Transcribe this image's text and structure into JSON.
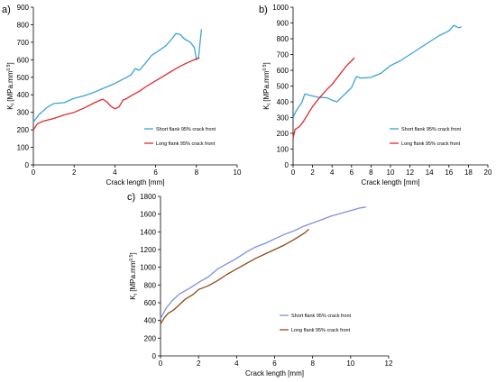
{
  "chart_data": [
    {
      "type": "line",
      "panel_label": "a)",
      "xlabel": "Crack length  [mm]",
      "ylabel": "K",
      "ylabel_sub": "I",
      "ylabel_unit": " [MPa.mm",
      "ylabel_exp": "0.5",
      "ylabel_close": "]",
      "xlim": [
        0,
        10
      ],
      "ylim": [
        0,
        900
      ],
      "xticks": [
        0,
        2,
        4,
        6,
        8,
        10
      ],
      "yticks": [
        0,
        100,
        200,
        300,
        400,
        500,
        600,
        700,
        800,
        900
      ],
      "grid": false,
      "legend_position": "right-center",
      "series": [
        {
          "name": "Short flank 95% crack front",
          "color": "#3AA4D4",
          "points": [
            [
              0,
              245
            ],
            [
              0.3,
              290
            ],
            [
              0.7,
              330
            ],
            [
              1,
              350
            ],
            [
              1.5,
              355
            ],
            [
              2,
              380
            ],
            [
              2.5,
              395
            ],
            [
              3,
              415
            ],
            [
              3.5,
              440
            ],
            [
              4,
              465
            ],
            [
              4.5,
              495
            ],
            [
              4.8,
              515
            ],
            [
              5,
              550
            ],
            [
              5.2,
              540
            ],
            [
              5.5,
              580
            ],
            [
              5.8,
              625
            ],
            [
              6,
              640
            ],
            [
              6.5,
              680
            ],
            [
              6.8,
              720
            ],
            [
              7,
              750
            ],
            [
              7.2,
              745
            ],
            [
              7.4,
              720
            ],
            [
              7.7,
              700
            ],
            [
              7.9,
              670
            ],
            [
              8,
              600
            ],
            [
              8.1,
              610
            ],
            [
              8.25,
              775
            ]
          ]
        },
        {
          "name": "Long flank 95% crack front",
          "color": "#E02A2A",
          "points": [
            [
              0,
              200
            ],
            [
              0.2,
              235
            ],
            [
              0.5,
              250
            ],
            [
              1,
              265
            ],
            [
              1.5,
              285
            ],
            [
              2,
              300
            ],
            [
              2.5,
              325
            ],
            [
              3,
              355
            ],
            [
              3.4,
              375
            ],
            [
              3.6,
              360
            ],
            [
              3.8,
              335
            ],
            [
              4,
              320
            ],
            [
              4.2,
              330
            ],
            [
              4.4,
              370
            ],
            [
              4.6,
              380
            ],
            [
              4.8,
              395
            ],
            [
              5.2,
              420
            ],
            [
              5.5,
              445
            ],
            [
              6,
              480
            ],
            [
              6.5,
              515
            ],
            [
              7,
              550
            ],
            [
              7.5,
              580
            ],
            [
              8,
              605
            ],
            [
              8.15,
              612
            ]
          ]
        }
      ]
    },
    {
      "type": "line",
      "panel_label": "b)",
      "xlabel": "Crack length  [mm]",
      "ylabel": "K",
      "ylabel_sub": "I",
      "ylabel_unit": " [MPa.mm",
      "ylabel_exp": "0.5",
      "ylabel_close": "]",
      "xlim": [
        0,
        20
      ],
      "ylim": [
        0,
        1000
      ],
      "xticks": [
        0,
        2,
        4,
        6,
        8,
        10,
        12,
        14,
        16,
        18,
        20
      ],
      "yticks": [
        0,
        100,
        200,
        300,
        400,
        500,
        600,
        700,
        800,
        900,
        1000
      ],
      "grid": false,
      "legend_position": "right-center",
      "series": [
        {
          "name": "Short flank 95% crack front",
          "color": "#3AA4D4",
          "points": [
            [
              0,
              300
            ],
            [
              0.3,
              340
            ],
            [
              0.6,
              370
            ],
            [
              0.9,
              395
            ],
            [
              1.2,
              450
            ],
            [
              1.8,
              440
            ],
            [
              2.5,
              430
            ],
            [
              3.5,
              425
            ],
            [
              4,
              410
            ],
            [
              4.5,
              400
            ],
            [
              5,
              430
            ],
            [
              5.5,
              460
            ],
            [
              6,
              490
            ],
            [
              6.5,
              560
            ],
            [
              7,
              550
            ],
            [
              8,
              555
            ],
            [
              9,
              580
            ],
            [
              10,
              630
            ],
            [
              11,
              660
            ],
            [
              12,
              700
            ],
            [
              13,
              740
            ],
            [
              14,
              780
            ],
            [
              15,
              820
            ],
            [
              16,
              850
            ],
            [
              16.5,
              885
            ],
            [
              17,
              870
            ],
            [
              17.3,
              875
            ]
          ]
        },
        {
          "name": "Long flank 95% crack front",
          "color": "#E02A2A",
          "points": [
            [
              0,
              170
            ],
            [
              0.2,
              225
            ],
            [
              0.6,
              240
            ],
            [
              1,
              270
            ],
            [
              1.5,
              320
            ],
            [
              2,
              370
            ],
            [
              2.5,
              410
            ],
            [
              3,
              445
            ],
            [
              3.5,
              480
            ],
            [
              4,
              510
            ],
            [
              4.5,
              550
            ],
            [
              5,
              590
            ],
            [
              5.5,
              630
            ],
            [
              6,
              660
            ],
            [
              6.3,
              680
            ]
          ]
        }
      ]
    },
    {
      "type": "line",
      "panel_label": "c)",
      "xlabel": "Crack length  [mm]",
      "ylabel": "K",
      "ylabel_sub": "I",
      "ylabel_unit": " [MPa.mm",
      "ylabel_exp": "0.5",
      "ylabel_close": "]",
      "xlim": [
        0,
        12
      ],
      "ylim": [
        0,
        1800
      ],
      "xticks": [
        0,
        2,
        4,
        6,
        8,
        10,
        12
      ],
      "yticks": [
        0,
        200,
        400,
        600,
        800,
        1000,
        1200,
        1400,
        1600,
        1800
      ],
      "grid": false,
      "legend_position": "right-center",
      "series": [
        {
          "name": "Short flank 95% crack front",
          "color": "#7F8FE0",
          "points": [
            [
              0,
              420
            ],
            [
              0.3,
              540
            ],
            [
              0.6,
              620
            ],
            [
              1,
              700
            ],
            [
              1.5,
              760
            ],
            [
              2,
              830
            ],
            [
              2.5,
              890
            ],
            [
              3,
              980
            ],
            [
              3.5,
              1040
            ],
            [
              4,
              1100
            ],
            [
              4.5,
              1170
            ],
            [
              5,
              1230
            ],
            [
              5.5,
              1270
            ],
            [
              6,
              1320
            ],
            [
              6.5,
              1370
            ],
            [
              7,
              1410
            ],
            [
              7.5,
              1460
            ],
            [
              8,
              1500
            ],
            [
              8.5,
              1540
            ],
            [
              9,
              1580
            ],
            [
              9.5,
              1610
            ],
            [
              10,
              1640
            ],
            [
              10.5,
              1670
            ],
            [
              10.8,
              1680
            ]
          ]
        },
        {
          "name": "Long flank 95% crack front",
          "color": "#8B4A1C",
          "points": [
            [
              0,
              360
            ],
            [
              0.2,
              430
            ],
            [
              0.4,
              480
            ],
            [
              0.7,
              520
            ],
            [
              1,
              580
            ],
            [
              1.3,
              640
            ],
            [
              1.7,
              690
            ],
            [
              2,
              750
            ],
            [
              2.5,
              790
            ],
            [
              3,
              850
            ],
            [
              3.5,
              920
            ],
            [
              4,
              980
            ],
            [
              4.5,
              1040
            ],
            [
              5,
              1100
            ],
            [
              5.5,
              1150
            ],
            [
              6,
              1200
            ],
            [
              6.5,
              1250
            ],
            [
              7,
              1310
            ],
            [
              7.3,
              1350
            ],
            [
              7.6,
              1390
            ],
            [
              7.8,
              1430
            ]
          ]
        }
      ]
    }
  ]
}
